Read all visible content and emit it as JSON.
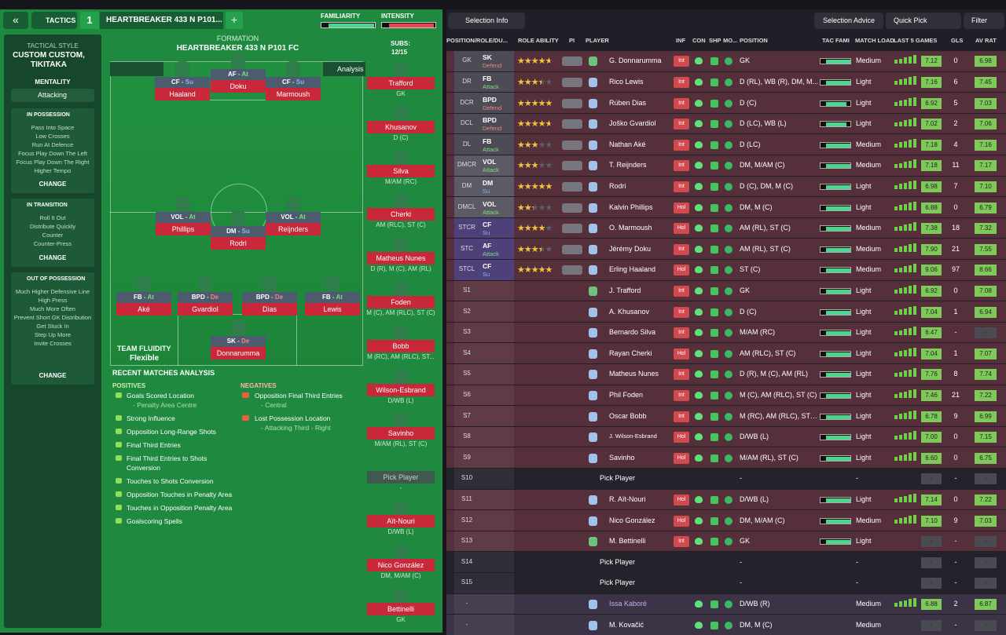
{
  "tactics_bar": {
    "tab": "TACTICS",
    "number": "1",
    "tactic_name": "HEARTBREAKER 433 N P101...",
    "add": "+",
    "familiarity": "FAMILIARITY",
    "intensity": "INTENSITY"
  },
  "sidebar": {
    "style_label": "TACTICAL STYLE",
    "style": "CUSTOM CUSTOM, TIKITAKA",
    "mentality_label": "MENTALITY",
    "mentality": "Attacking",
    "sections": [
      {
        "title": "IN POSSESSION",
        "items": [
          "Pass Into Space",
          "Low Crosses",
          "Run At Defence",
          "Focus Play Down The Left",
          "Focus Play Down The Right",
          "Higher Tempo"
        ],
        "action": "CHANGE"
      },
      {
        "title": "IN TRANSITION",
        "items": [
          "Roll It Out",
          "Distribute Quickly",
          "Counter",
          "Counter-Press"
        ],
        "action": "CHANGE"
      },
      {
        "title": "OUT OF POSSESSION",
        "items": [
          "Much Higher Defensive Line",
          "High Press",
          "Much More Often",
          "Prevent Short GK Distribution",
          "Get Stuck In",
          "Step Up More",
          "Invite Crosses"
        ],
        "action": "CHANGE"
      }
    ]
  },
  "pitch": {
    "formation_label": "FORMATION",
    "formation": "HEARTBREAKER 433 N P101 FC",
    "analysis": "Analysis",
    "players": [
      {
        "role": "CF",
        "duty": "Su",
        "name": "Haaland"
      },
      {
        "role": "AF",
        "duty": "At",
        "name": "Doku"
      },
      {
        "role": "CF",
        "duty": "Su",
        "name": "Marmoush"
      },
      {
        "role": "VOL",
        "duty": "At",
        "name": "Phillips"
      },
      {
        "role": "DM",
        "duty": "Su",
        "name": "Rodri"
      },
      {
        "role": "VOL",
        "duty": "At",
        "name": "Reijnders"
      },
      {
        "role": "FB",
        "duty": "At",
        "name": "Aké"
      },
      {
        "role": "BPD",
        "duty": "De",
        "name": "Gvardiol"
      },
      {
        "role": "BPD",
        "duty": "De",
        "name": "Dias"
      },
      {
        "role": "FB",
        "duty": "At",
        "name": "Lewis"
      },
      {
        "role": "SK",
        "duty": "De",
        "name": "Donnarumma"
      }
    ],
    "fluidity_label": "TEAM FLUIDITY",
    "fluidity": "Flexible"
  },
  "subs": {
    "label": "SUBS:",
    "count": "12/15",
    "players": [
      {
        "name": "Trafford",
        "position": "GK"
      },
      {
        "name": "Khusanov",
        "position": "D (C)"
      },
      {
        "name": "Silva",
        "position": "M/AM (RC)"
      },
      {
        "name": "Cherki",
        "position": "AM (RLC), ST (C)"
      },
      {
        "name": "Matheus Nunes",
        "position": "D (R), M (C), AM (RL)"
      },
      {
        "name": "Foden",
        "position": "M (C), AM (RLC), ST (C)"
      },
      {
        "name": "Bobb",
        "position": "M (RC), AM (RLC), ST..."
      },
      {
        "name": "Wilson-Esbrand",
        "position": "D/WB (L)"
      },
      {
        "name": "Savinho",
        "position": "M/AM (RL), ST (C)"
      },
      {
        "name": "Pick Player",
        "position": "-"
      },
      {
        "name": "Aït-Nouri",
        "position": "D/WB (L)"
      },
      {
        "name": "Nico González",
        "position": "DM, M/AM (C)"
      },
      {
        "name": "Bettinelli",
        "position": "GK"
      }
    ]
  },
  "analysis": {
    "title": "RECENT MATCHES ANALYSIS",
    "positives_label": "POSITIVES",
    "negatives_label": "NEGATIVES",
    "positives": [
      {
        "text": "Goals Scored Location",
        "detail": "- Penalty Area Centre"
      },
      {
        "text": "Strong Influence"
      },
      {
        "text": "Opposition Long-Range Shots"
      },
      {
        "text": "Final Third Entries"
      },
      {
        "text": "Final Third Entries to Shots Conversion"
      },
      {
        "text": "Touches to Shots Conversion"
      },
      {
        "text": "Opposition Touches in Penalty Area"
      },
      {
        "text": "Touches in Opposition Penalty Area"
      },
      {
        "text": "Goalscoring Spells"
      }
    ],
    "negatives": [
      {
        "text": "Opposition Final Third Entries",
        "detail": "- Central"
      },
      {
        "text": "Lost Possession Location",
        "detail": "- Attacking Third - Right"
      }
    ]
  },
  "toolbar": {
    "selection_info": "Selection Info",
    "selection_advice": "Selection Advice",
    "quick_pick": "Quick Pick",
    "filter": "Filter"
  },
  "table": {
    "columns": [
      "POSITION/ROLE/DU...",
      "ROLE ABILITY",
      "PI",
      "PLAYER",
      "INF",
      "CON",
      "SHP",
      "MO...",
      "POSITION",
      "TAC FAMI",
      "MATCH LOAD",
      "LAST 5 GAMES",
      "GLS",
      "AV RAT"
    ],
    "rows": [
      {
        "pos": "GK",
        "role": "SK",
        "duty": "Defend",
        "stars": 4,
        "player": "G. Donnarumma",
        "inf": "Int",
        "position": "GK",
        "load": "Medium",
        "rating": "7.12",
        "gls": "0",
        "av": "6.98"
      },
      {
        "pos": "DR",
        "role": "FB",
        "duty": "Attack",
        "stars": 3,
        "player": "Rico Lewis",
        "inf": "Int",
        "position": "D (RL), WB (R), DM, M...",
        "load": "Light",
        "rating": "7.16",
        "gls": "6",
        "av": "7.45"
      },
      {
        "pos": "DCR",
        "role": "BPD",
        "duty": "Defend",
        "stars": 4.5,
        "player": "Rúben Dias",
        "inf": "Int",
        "position": "D (C)",
        "load": "Light",
        "rating": "6.92",
        "gls": "5",
        "av": "7.03"
      },
      {
        "pos": "DCL",
        "role": "BPD",
        "duty": "Defend",
        "stars": 4,
        "player": "Joško Gvardiol",
        "inf": "Int",
        "position": "D (LC), WB (L)",
        "load": "Light",
        "rating": "7.02",
        "gls": "2",
        "av": "7.06"
      },
      {
        "pos": "DL",
        "role": "FB",
        "duty": "Attack",
        "stars": 2.5,
        "player": "Nathan Aké",
        "inf": "Int",
        "position": "D (LC)",
        "load": "Medium",
        "rating": "7.18",
        "gls": "4",
        "av": "7.16"
      },
      {
        "pos": "DMCR",
        "role": "VOL",
        "duty": "Attack",
        "stars": 2.5,
        "player": "T. Reijnders",
        "inf": "Int",
        "position": "DM, M/AM (C)",
        "load": "Medium",
        "rating": "7.18",
        "gls": "11",
        "av": "7.17"
      },
      {
        "pos": "DM",
        "role": "DM",
        "duty": "Su",
        "stars": 4.5,
        "player": "Rodri",
        "inf": "Int",
        "position": "D (C), DM, M (C)",
        "load": "Light",
        "rating": "6.98",
        "gls": "7",
        "av": "7.10"
      },
      {
        "pos": "DMCL",
        "role": "VOL",
        "duty": "Attack",
        "stars": 2,
        "player": "Kalvin Phillips",
        "inf": "Hol",
        "position": "DM, M (C)",
        "load": "Light",
        "rating": "6.88",
        "gls": "0",
        "av": "6.79"
      },
      {
        "pos": "STCR",
        "role": "CF",
        "duty": "Su",
        "stars": 3.5,
        "player": "O. Marmoush",
        "inf": "Hol",
        "position": "AM (RL), ST (C)",
        "load": "Medium",
        "rating": "7.38",
        "gls": "18",
        "av": "7.32"
      },
      {
        "pos": "STC",
        "role": "AF",
        "duty": "Attack",
        "stars": 3,
        "player": "Jérémy Doku",
        "inf": "Int",
        "position": "AM (RL), ST (C)",
        "load": "Medium",
        "rating": "7.90",
        "gls": "21",
        "av": "7.55"
      },
      {
        "pos": "STCL",
        "role": "CF",
        "duty": "Su",
        "stars": 5,
        "player": "Erling Haaland",
        "inf": "Hol",
        "position": "ST (C)",
        "load": "Medium",
        "rating": "9.06",
        "gls": "97",
        "av": "8.66"
      },
      {
        "pos": "S1",
        "player": "J. Trafford",
        "inf": "Int",
        "position": "GK",
        "load": "Light",
        "rating": "6.92",
        "gls": "0",
        "av": "7.08"
      },
      {
        "pos": "S2",
        "player": "A. Khusanov",
        "inf": "Int",
        "position": "D (C)",
        "load": "Light",
        "rating": "7.04",
        "gls": "1",
        "av": "6.94"
      },
      {
        "pos": "S3",
        "player": "Bernardo Silva",
        "inf": "Int",
        "position": "M/AM (RC)",
        "load": "Light",
        "rating": "6.47",
        "gls": "-",
        "av": "-"
      },
      {
        "pos": "S4",
        "player": "Rayan Cherki",
        "inf": "Hol",
        "position": "AM (RLC), ST (C)",
        "load": "Light",
        "rating": "7.04",
        "gls": "1",
        "av": "7.07"
      },
      {
        "pos": "S5",
        "player": "Matheus Nunes",
        "inf": "Int",
        "position": "D (R), M (C), AM (RL)",
        "load": "Light",
        "rating": "7.76",
        "gls": "8",
        "av": "7.74"
      },
      {
        "pos": "S6",
        "player": "Phil Foden",
        "inf": "Int",
        "position": "M (C), AM (RLC), ST (C)",
        "load": "Light",
        "rating": "7.46",
        "gls": "21",
        "av": "7.22"
      },
      {
        "pos": "S7",
        "player": "Oscar Bobb",
        "inf": "Int",
        "position": "M (RC), AM (RLC), ST (C)",
        "load": "Light",
        "rating": "6.78",
        "gls": "9",
        "av": "6.99"
      },
      {
        "pos": "S8",
        "player": "J. Wilson-Esbrand",
        "inf": "Hol",
        "position": "D/WB (L)",
        "load": "Light",
        "rating": "7.00",
        "gls": "0",
        "av": "7.15"
      },
      {
        "pos": "S9",
        "player": "Savinho",
        "inf": "Hol",
        "position": "M/AM (RL), ST (C)",
        "load": "Light",
        "rating": "6.60",
        "gls": "0",
        "av": "6.75"
      },
      {
        "pos": "S10",
        "player": "Pick Player",
        "position": "-",
        "load": "-",
        "rating": "-",
        "gls": "-",
        "av": "-",
        "pick": true
      },
      {
        "pos": "S11",
        "player": "R. Aït-Nouri",
        "inf": "Hol",
        "position": "D/WB (L)",
        "load": "Light",
        "rating": "7.14",
        "gls": "0",
        "av": "7.22"
      },
      {
        "pos": "S12",
        "player": "Nico González",
        "inf": "Hol",
        "position": "DM, M/AM (C)",
        "load": "Medium",
        "rating": "7.10",
        "gls": "9",
        "av": "7.03"
      },
      {
        "pos": "S13",
        "player": "M. Bettinelli",
        "inf": "Int",
        "position": "GK",
        "load": "Light",
        "rating": "-",
        "gls": "-",
        "av": "-"
      },
      {
        "pos": "S14",
        "player": "Pick Player",
        "position": "-",
        "load": "-",
        "rating": "-",
        "gls": "-",
        "av": "-",
        "pick": true
      },
      {
        "pos": "S15",
        "player": "Pick Player",
        "position": "-",
        "load": "-",
        "rating": "-",
        "gls": "-",
        "av": "-",
        "pick": true
      },
      {
        "pos": "-",
        "player": "Issa Kaboré",
        "position": "D/WB (R)",
        "load": "Medium",
        "rating": "6.88",
        "gls": "2",
        "av": "6.87",
        "reserve": true
      },
      {
        "pos": "-",
        "player": "M. Kovačić",
        "position": "DM, M (C)",
        "load": "Medium",
        "rating": "-",
        "gls": "-",
        "av": "-",
        "reserve": true
      }
    ]
  }
}
